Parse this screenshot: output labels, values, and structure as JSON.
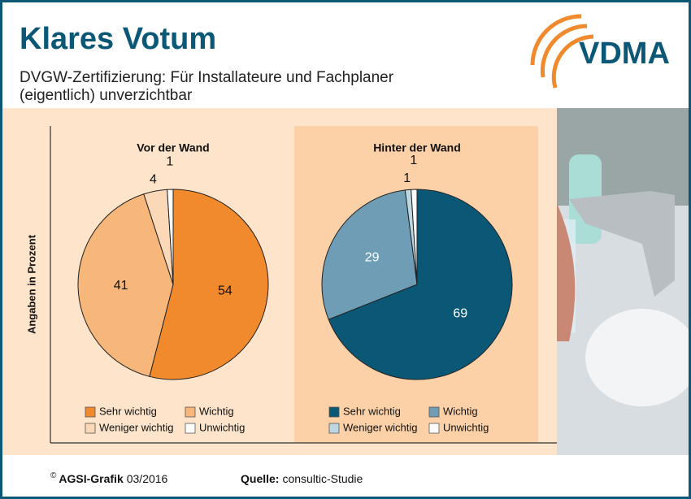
{
  "header": {
    "title": "Klares Votum",
    "subtitle_lines": [
      "DVGW-Zertifizierung: Für Installateure und Fachplaner",
      "(eigentlich) unverzichtbar"
    ],
    "logo": "VDMA"
  },
  "axis_label": "Angaben in Prozent",
  "chart_data": [
    {
      "type": "pie",
      "title": "Vor der Wand",
      "categories": [
        "Sehr wichtig",
        "Wichtig",
        "Weniger wichtig",
        "Unwichtig"
      ],
      "values": [
        54,
        41,
        4,
        1
      ],
      "colors": [
        "#f08a2c",
        "#f7b67a",
        "#fbd9b8",
        "#ffffff"
      ]
    },
    {
      "type": "pie",
      "title": "Hinter der Wand",
      "categories": [
        "Sehr wichtig",
        "Wichtig",
        "Weniger wichtig",
        "Unwichtig"
      ],
      "values": [
        69,
        29,
        1,
        1
      ],
      "colors": [
        "#0b5876",
        "#6f9db6",
        "#bcd6e2",
        "#ffffff"
      ]
    }
  ],
  "footer": {
    "copyright": "©",
    "credit": "AGSI-Grafik",
    "date": "03/2016",
    "source_label": "Quelle:",
    "source": "consultic-Studie"
  }
}
